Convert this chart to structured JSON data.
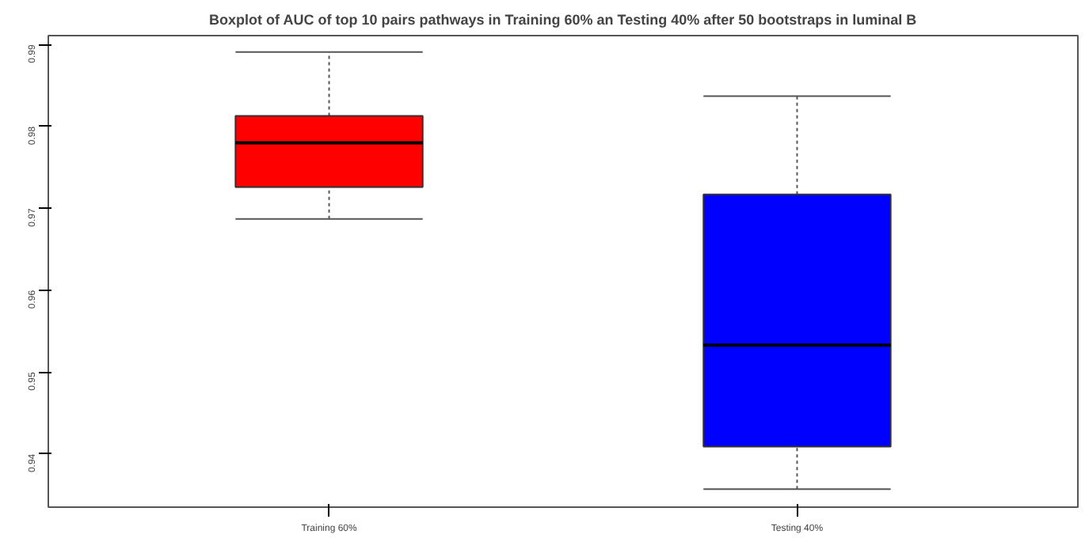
{
  "chart_data": {
    "type": "box",
    "title": "Boxplot of AUC of top 10 pairs pathways in Training 60% an Testing 40% after 50 bootstraps in luminal B",
    "categories": [
      "Training 60%",
      "Testing 40%"
    ],
    "colors": [
      "#ff0000",
      "#0000ff"
    ],
    "boxes": [
      {
        "low": 0.9687,
        "q1": 0.9726,
        "median": 0.978,
        "q3": 0.9813,
        "high": 0.9891
      },
      {
        "low": 0.9357,
        "q1": 0.9409,
        "median": 0.9533,
        "q3": 0.9717,
        "high": 0.9837
      }
    ],
    "ylim": [
      0.9335,
      0.9911
    ],
    "yticks": [
      0.94,
      0.95,
      0.96,
      0.97,
      0.98,
      0.99
    ],
    "grid": false
  }
}
